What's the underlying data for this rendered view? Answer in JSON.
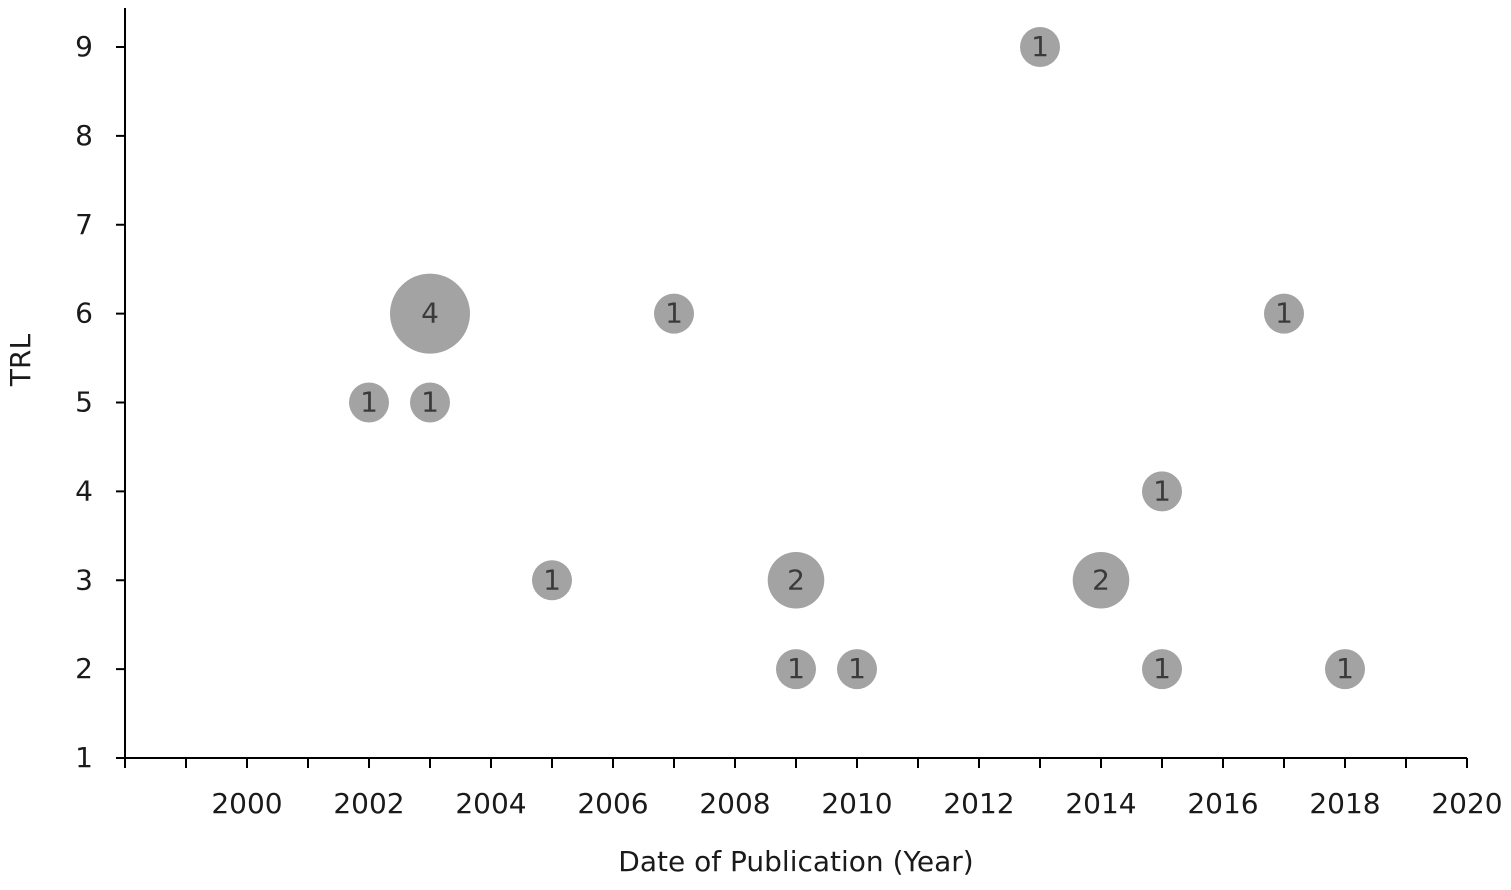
{
  "chart_data": {
    "type": "bubble",
    "x_label": "Date of Publication (Year)",
    "y_label": "TRL",
    "xlim": [
      1998,
      2020
    ],
    "xticks": [
      2000,
      2002,
      2004,
      2006,
      2008,
      2010,
      2012,
      2014,
      2016,
      2018,
      2020
    ],
    "ylim": [
      1,
      9
    ],
    "yticks": [
      1,
      2,
      3,
      4,
      5,
      6,
      7,
      8,
      9
    ],
    "grid": false,
    "series": [
      {
        "color": "#a3a3a3",
        "x": [
          2013,
          2003,
          2007,
          2017,
          2002,
          2003,
          2015,
          2005,
          2009,
          2014,
          2009,
          2010,
          2015,
          2018
        ],
        "values": [
          9,
          6,
          6,
          6,
          5,
          5,
          4,
          3,
          3,
          3,
          2,
          2,
          2,
          2
        ],
        "sizes": [
          1,
          4,
          1,
          1,
          1,
          1,
          1,
          1,
          2,
          2,
          1,
          1,
          1,
          1
        ]
      }
    ]
  }
}
